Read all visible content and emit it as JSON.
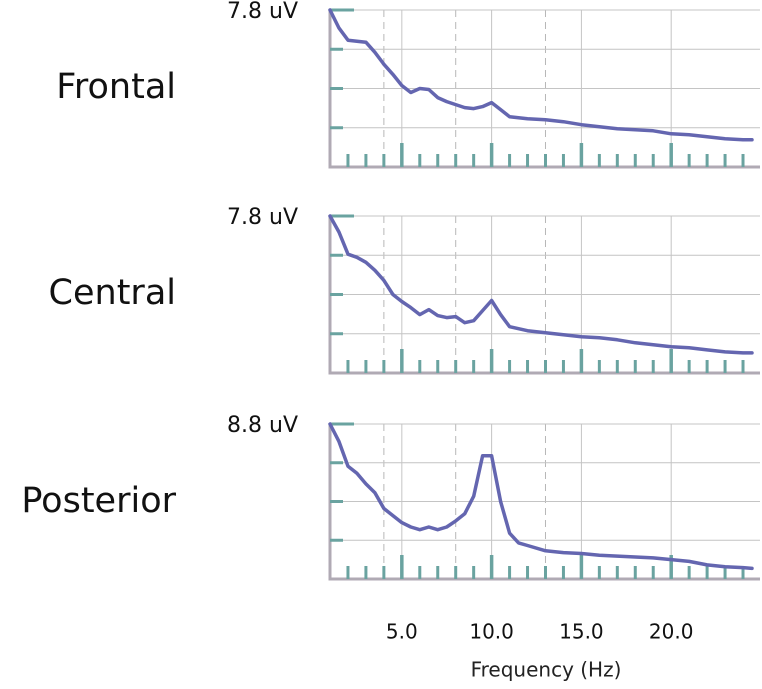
{
  "chart_data": {
    "type": "line",
    "xlabel": "Frequency (Hz)",
    "xlim": [
      1.0,
      24.5
    ],
    "xticks": [
      5.0,
      10.0,
      15.0,
      20.0
    ],
    "xtick_labels": [
      "5.0",
      "10.0",
      "15.0",
      "20.0"
    ],
    "minor_xticks": [
      2,
      3,
      4,
      6,
      7,
      8,
      9,
      11,
      12,
      13,
      14,
      16,
      17,
      18,
      19,
      21,
      22,
      23,
      24
    ],
    "dashed_gridlines": [
      4.0,
      8.0,
      13.0
    ],
    "solid_gridlines": [
      5.0,
      10.0,
      15.0,
      20.0
    ],
    "panels": [
      {
        "name": "Frontal",
        "ymax_label": "7.8 uV",
        "ylim": [
          0,
          7.8
        ],
        "x": [
          1.0,
          1.5,
          2.0,
          2.5,
          3.0,
          3.5,
          4.0,
          4.5,
          5.0,
          5.5,
          6.0,
          6.5,
          7.0,
          7.5,
          8.0,
          8.5,
          9.0,
          9.5,
          10.0,
          10.5,
          11.0,
          12.0,
          13.0,
          14.0,
          15.0,
          16.0,
          17.0,
          18.0,
          19.0,
          20.0,
          21.0,
          22.0,
          23.0,
          24.0,
          24.5
        ],
        "values": [
          7.8,
          6.9,
          6.3,
          6.25,
          6.2,
          5.7,
          5.1,
          4.6,
          4.05,
          3.7,
          3.9,
          3.85,
          3.45,
          3.25,
          3.1,
          2.95,
          2.9,
          3.0,
          3.2,
          2.85,
          2.5,
          2.4,
          2.35,
          2.25,
          2.1,
          2.0,
          1.9,
          1.85,
          1.8,
          1.65,
          1.6,
          1.5,
          1.4,
          1.35,
          1.35
        ]
      },
      {
        "name": "Central",
        "ymax_label": "7.8 uV",
        "ylim": [
          0,
          7.8
        ],
        "x": [
          1.0,
          1.5,
          2.0,
          2.5,
          3.0,
          3.5,
          4.0,
          4.5,
          5.0,
          5.5,
          6.0,
          6.5,
          7.0,
          7.5,
          8.0,
          8.5,
          9.0,
          9.5,
          10.0,
          10.5,
          11.0,
          12.0,
          13.0,
          14.0,
          15.0,
          16.0,
          17.0,
          18.0,
          19.0,
          20.0,
          21.0,
          22.0,
          23.0,
          24.0,
          24.5
        ],
        "values": [
          7.8,
          7.0,
          5.9,
          5.75,
          5.5,
          5.1,
          4.6,
          3.9,
          3.55,
          3.25,
          2.9,
          3.15,
          2.85,
          2.75,
          2.8,
          2.5,
          2.6,
          3.1,
          3.6,
          2.9,
          2.3,
          2.1,
          2.0,
          1.9,
          1.8,
          1.75,
          1.65,
          1.5,
          1.4,
          1.3,
          1.25,
          1.15,
          1.05,
          1.0,
          1.0
        ]
      },
      {
        "name": "Posterior",
        "ymax_label": "8.8 uV",
        "ylim": [
          0,
          8.8
        ],
        "x": [
          1.0,
          1.5,
          2.0,
          2.5,
          3.0,
          3.5,
          4.0,
          4.5,
          5.0,
          5.5,
          6.0,
          6.5,
          7.0,
          7.5,
          8.0,
          8.5,
          9.0,
          9.5,
          10.0,
          10.5,
          11.0,
          11.5,
          12.0,
          13.0,
          14.0,
          15.0,
          16.0,
          17.0,
          18.0,
          19.0,
          20.0,
          21.0,
          22.0,
          23.0,
          24.0,
          24.5
        ],
        "values": [
          8.8,
          7.8,
          6.4,
          6.0,
          5.4,
          4.9,
          4.0,
          3.6,
          3.2,
          2.95,
          2.8,
          2.95,
          2.8,
          2.95,
          3.3,
          3.7,
          4.7,
          7.0,
          7.0,
          4.4,
          2.6,
          2.05,
          1.9,
          1.6,
          1.5,
          1.45,
          1.35,
          1.3,
          1.25,
          1.2,
          1.1,
          1.0,
          0.8,
          0.7,
          0.65,
          0.6
        ]
      }
    ]
  }
}
